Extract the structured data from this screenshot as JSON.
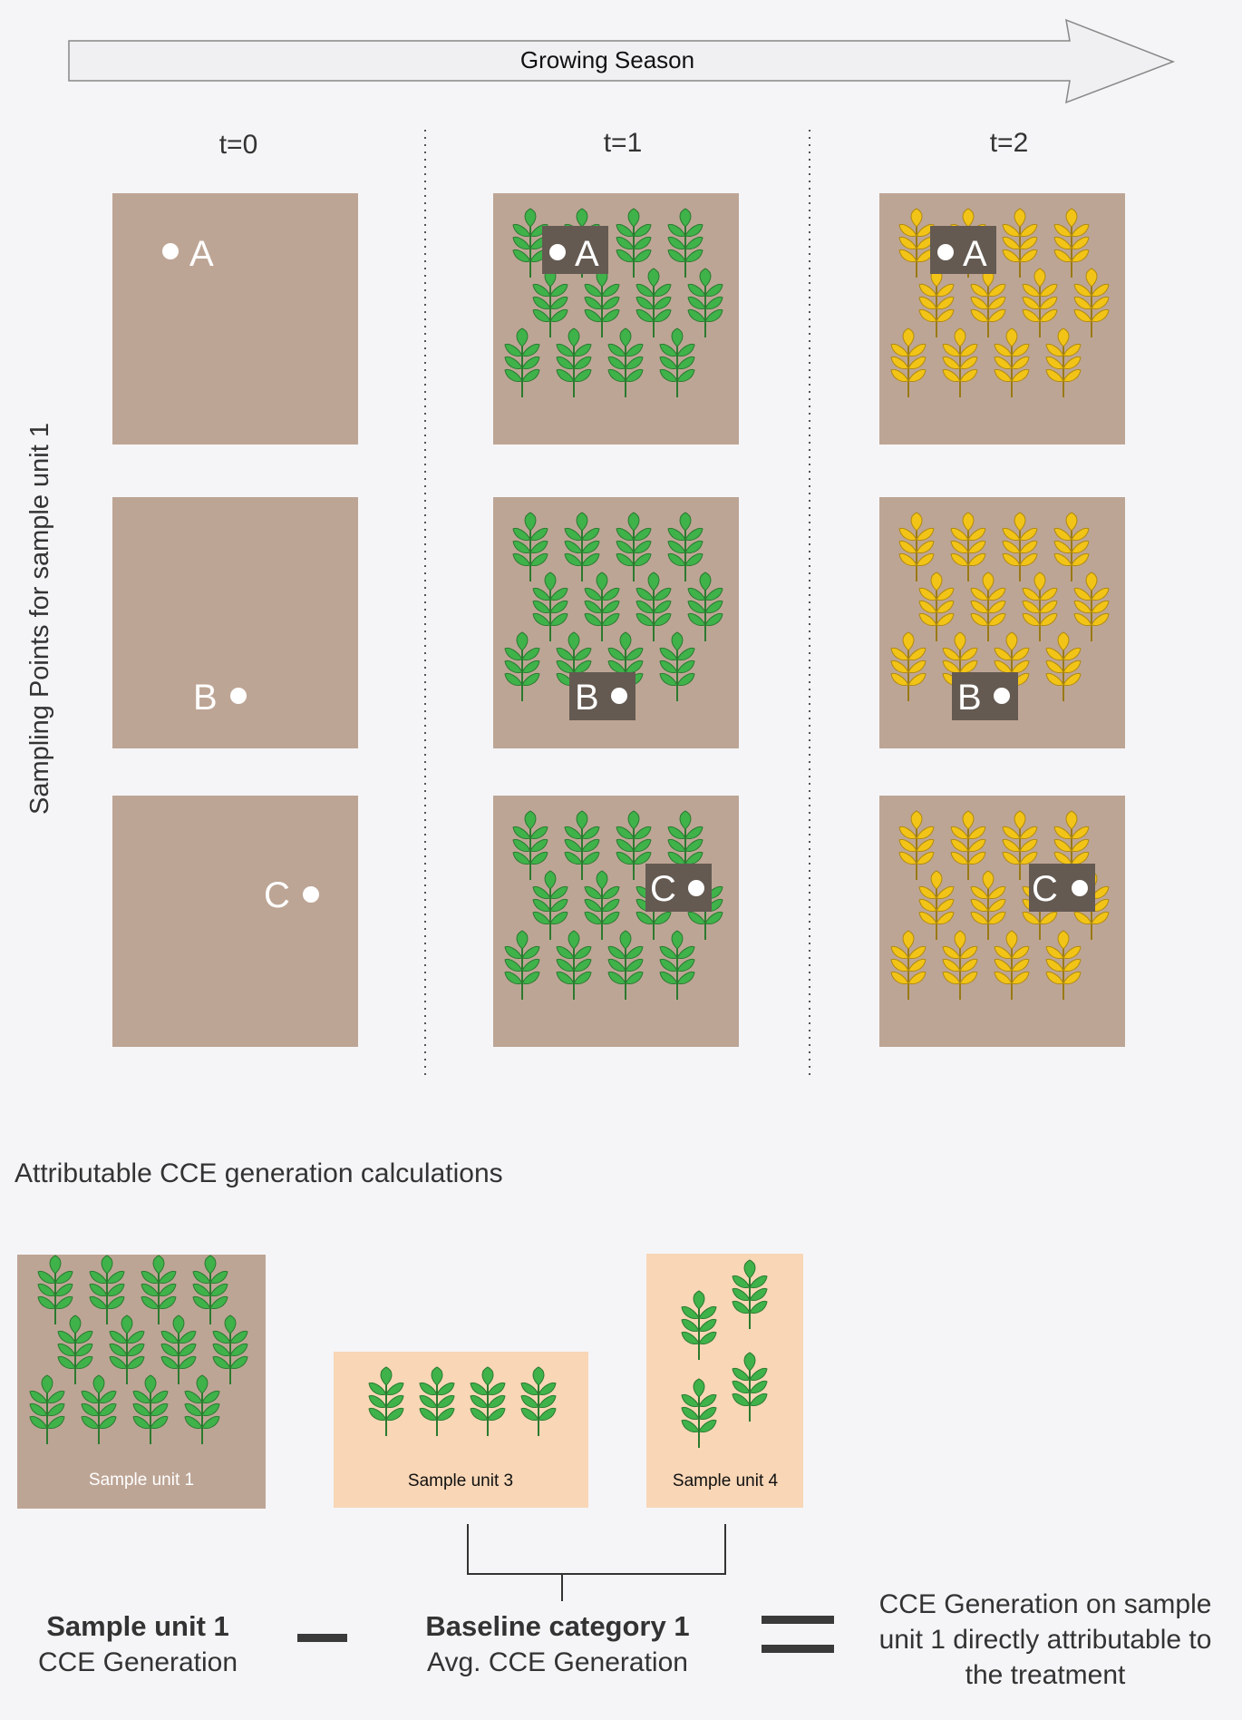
{
  "header": {
    "arrow_label": "Growing Season",
    "times": [
      "t=0",
      "t=1",
      "t=2"
    ],
    "y_axis_label": "Sampling Points for sample unit 1"
  },
  "grid": {
    "points": [
      "A",
      "B",
      "C"
    ],
    "columns": [
      {
        "time": "t=0",
        "crop": "none"
      },
      {
        "time": "t=1",
        "crop": "green"
      },
      {
        "time": "t=2",
        "crop": "yellow"
      }
    ]
  },
  "calc": {
    "section_title": "Attributable CCE generation calculations",
    "sample_units": [
      "Sample unit 1",
      "Sample unit 3",
      "Sample unit 4"
    ],
    "term1_bold": "Sample unit 1",
    "term1_sub": "CCE Generation",
    "term2_bold": "Baseline category 1",
    "term2_sub": "Avg. CCE Generation",
    "result_lines": [
      "CCE Generation on sample",
      "unit 1 directly attributable to",
      "the treatment"
    ]
  },
  "colors": {
    "soil": "#bda595",
    "peach": "#f8d6b6",
    "green_plant": "#3fb24a",
    "yellow_plant": "#f2c417",
    "label_box": "#645a52",
    "operator": "#3a3a3a"
  }
}
